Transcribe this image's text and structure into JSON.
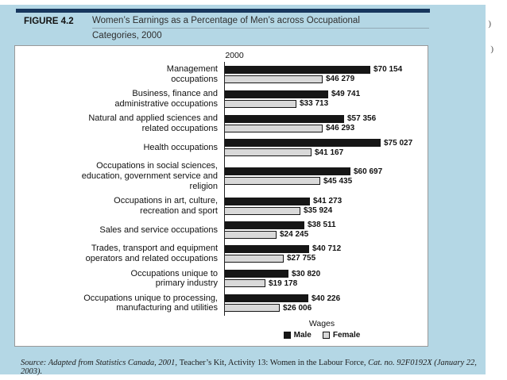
{
  "header": {
    "figure_label": "FIGURE 4.2",
    "title_line1": "Women’s Earnings as a Percentage of Men’s across Occupational",
    "title_line2": "Categories, 2000"
  },
  "chart_data": {
    "type": "bar",
    "orientation": "horizontal",
    "year_label": "2000",
    "xlabel": "Wages",
    "xmax": 75027,
    "grid": false,
    "legend_position": "bottom",
    "categories": [
      "Management\noccupations",
      "Business, finance and\nadministrative occupations",
      "Natural and applied sciences and\nrelated occupations",
      "Health occupations",
      "Occupations in social sciences,\neducation, government service and\nreligion",
      "Occupations in art, culture,\nrecreation and sport",
      "Sales and service occupations",
      "Trades, transport and equipment\noperators and related occupations",
      "Occupations unique to\nprimary industry",
      "Occupations unique to processing,\nmanufacturing and utilities"
    ],
    "series": [
      {
        "name": "Male",
        "color": "#161616",
        "values": [
          70154,
          49741,
          57356,
          75027,
          60697,
          41273,
          38511,
          40712,
          30820,
          40226
        ],
        "labels": [
          "$70 154",
          "$49 741",
          "$57 356",
          "$75 027",
          "$60 697",
          "$41 273",
          "$38 511",
          "$40 712",
          "$30 820",
          "$40 226"
        ]
      },
      {
        "name": "Female",
        "color": "#d9d9d9",
        "values": [
          46279,
          33713,
          46293,
          41167,
          45435,
          35924,
          24245,
          27755,
          19178,
          26006
        ],
        "labels": [
          "$46 279",
          "$33 713",
          "$46 293",
          "$41 167",
          "$45 435",
          "$35 924",
          "$24 245",
          "$27 755",
          "$19 178",
          "$26 006"
        ]
      }
    ],
    "legend": [
      {
        "label": "Male",
        "color": "#161616"
      },
      {
        "label": "Female",
        "color": "#d9d9d9"
      }
    ]
  },
  "source": {
    "part1": "Source: Adapted from Statistics Canada, 2001, ",
    "part2": "Teacher’s Kit, Activity 13: Women in the Labour Force, ",
    "part3": "Cat. no. 92F0192X (January 22, 2003)."
  },
  "artifacts": {
    "edge_mark_1": ")",
    "edge_mark_2": ")"
  }
}
